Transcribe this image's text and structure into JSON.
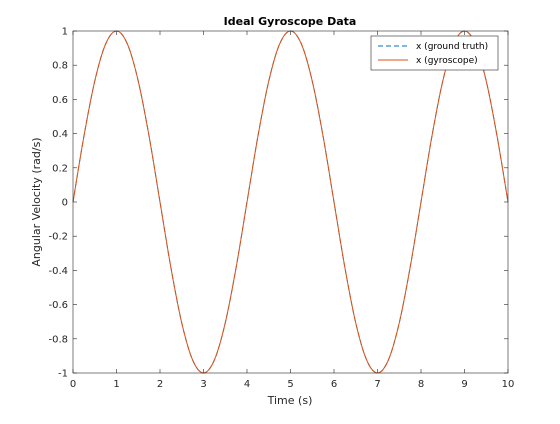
{
  "chart_data": {
    "type": "line",
    "title": "Ideal Gyroscope Data",
    "xlabel": "Time (s)",
    "ylabel": "Angular Velocity (rad/s)",
    "xlim": [
      0,
      10
    ],
    "ylim": [
      -1,
      1
    ],
    "xticks": [
      0,
      1,
      2,
      3,
      4,
      5,
      6,
      7,
      8,
      9,
      10
    ],
    "xtick_labels": [
      "0",
      "1",
      "2",
      "3",
      "4",
      "5",
      "6",
      "7",
      "8",
      "9",
      "10"
    ],
    "yticks": [
      -1,
      -0.8,
      -0.6,
      -0.4,
      -0.2,
      0,
      0.2,
      0.4,
      0.6,
      0.8,
      1
    ],
    "ytick_labels": [
      "-1",
      "-0.8",
      "-0.6",
      "-0.4",
      "-0.2",
      "0",
      "0.2",
      "0.4",
      "0.6",
      "0.8",
      "1"
    ],
    "grid": false,
    "legend_position": "top-right",
    "x": [
      0,
      0.25,
      0.5,
      0.75,
      1,
      1.25,
      1.5,
      1.75,
      2,
      2.25,
      2.5,
      2.75,
      3,
      3.25,
      3.5,
      3.75,
      4,
      4.25,
      4.5,
      4.75,
      5,
      5.25,
      5.5,
      5.75,
      6,
      6.25,
      6.5,
      6.75,
      7,
      7.25,
      7.5,
      7.75,
      8,
      8.25,
      8.5,
      8.75,
      9,
      9.25,
      9.5,
      9.75,
      10
    ],
    "series": [
      {
        "name": "x (ground truth)",
        "color": "#0072BD",
        "line_style": "dashed",
        "values": [
          0,
          0.383,
          0.707,
          0.924,
          1,
          0.924,
          0.707,
          0.383,
          0,
          -0.383,
          -0.707,
          -0.924,
          -1,
          -0.924,
          -0.707,
          -0.383,
          0,
          0.383,
          0.707,
          0.924,
          1,
          0.924,
          0.707,
          0.383,
          0,
          -0.383,
          -0.707,
          -0.924,
          -1,
          -0.924,
          -0.707,
          -0.383,
          0,
          0.383,
          0.707,
          0.924,
          1,
          0.924,
          0.707,
          0.383,
          0
        ]
      },
      {
        "name": "x (gyroscope)",
        "color": "#D95319",
        "line_style": "solid",
        "values": [
          0,
          0.383,
          0.707,
          0.924,
          1,
          0.924,
          0.707,
          0.383,
          0,
          -0.383,
          -0.707,
          -0.924,
          -1,
          -0.924,
          -0.707,
          -0.383,
          0,
          0.383,
          0.707,
          0.924,
          1,
          0.924,
          0.707,
          0.383,
          0,
          -0.383,
          -0.707,
          -0.924,
          -1,
          -0.924,
          -0.707,
          -0.383,
          0,
          0.383,
          0.707,
          0.924,
          1,
          0.924,
          0.707,
          0.383,
          0
        ]
      }
    ]
  }
}
